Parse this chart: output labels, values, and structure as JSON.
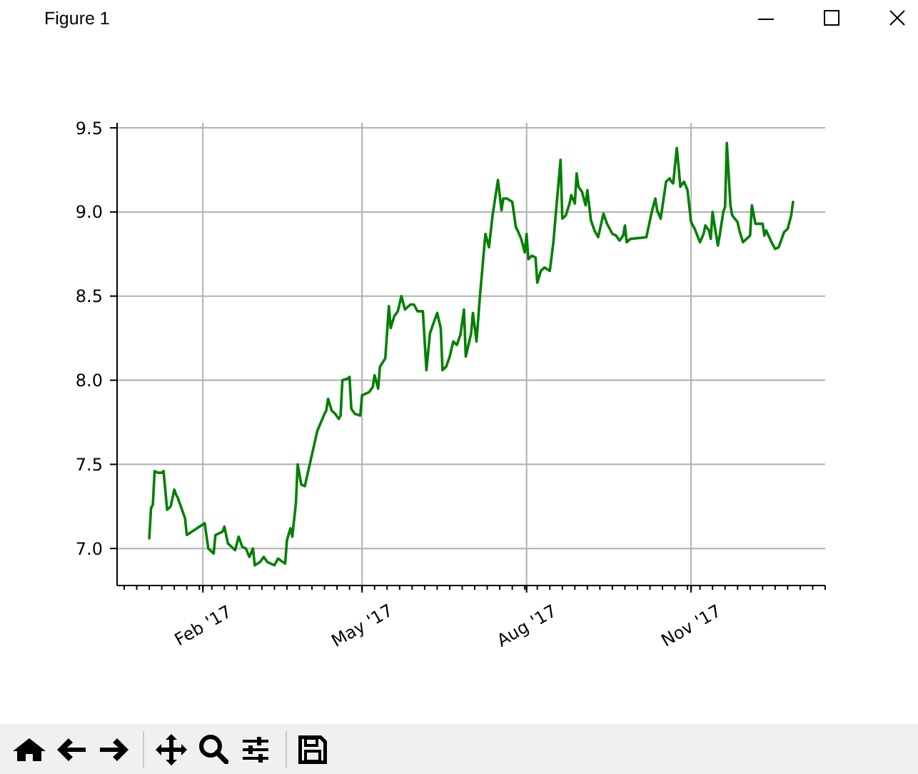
{
  "chart_data": {
    "type": "line",
    "annotations": [
      "Figure 1"
    ],
    "x": [
      "2017-01-02",
      "2017-01-03",
      "2017-01-04",
      "2017-01-05",
      "2017-01-07",
      "2017-01-09",
      "2017-01-10",
      "2017-01-12",
      "2017-01-14",
      "2017-01-16",
      "2017-01-17",
      "2017-01-18",
      "2017-01-20",
      "2017-01-22",
      "2017-01-23",
      "2017-02-02",
      "2017-02-04",
      "2017-02-07",
      "2017-02-08",
      "2017-02-12",
      "2017-02-13",
      "2017-02-15",
      "2017-02-17",
      "2017-02-19",
      "2017-02-21",
      "2017-02-22",
      "2017-02-23",
      "2017-02-25",
      "2017-02-27",
      "2017-03-01",
      "2017-03-02",
      "2017-03-05",
      "2017-03-07",
      "2017-03-09",
      "2017-03-13",
      "2017-03-15",
      "2017-03-19",
      "2017-03-20",
      "2017-03-22",
      "2017-03-23",
      "2017-03-25",
      "2017-03-26",
      "2017-03-28",
      "2017-03-30",
      "2017-04-06",
      "2017-04-10",
      "2017-04-11",
      "2017-04-12",
      "2017-04-14",
      "2017-04-16",
      "2017-04-18",
      "2017-04-19",
      "2017-04-20",
      "2017-04-23",
      "2017-04-24",
      "2017-04-25",
      "2017-04-27",
      "2017-04-30",
      "2017-05-01",
      "2017-05-05",
      "2017-05-07",
      "2017-05-08",
      "2017-05-10",
      "2017-05-11",
      "2017-05-14",
      "2017-05-16",
      "2017-05-17",
      "2017-05-19",
      "2017-05-21",
      "2017-05-23",
      "2017-05-25",
      "2017-05-28",
      "2017-05-30",
      "2017-06-01",
      "2017-06-04",
      "2017-06-06",
      "2017-06-08",
      "2017-06-10",
      "2017-06-12",
      "2017-06-14",
      "2017-06-15",
      "2017-06-17",
      "2017-06-19",
      "2017-06-21",
      "2017-06-23",
      "2017-06-25",
      "2017-06-27",
      "2017-06-28",
      "2017-07-01",
      "2017-07-02",
      "2017-07-04",
      "2017-07-06",
      "2017-07-09",
      "2017-07-11",
      "2017-07-13",
      "2017-07-16",
      "2017-07-18",
      "2017-07-19",
      "2017-07-21",
      "2017-07-24",
      "2017-07-26",
      "2017-07-27",
      "2017-07-29",
      "2017-07-31",
      "2017-08-01",
      "2017-08-02",
      "2017-08-04",
      "2017-08-06",
      "2017-08-07",
      "2017-08-09",
      "2017-08-11",
      "2017-08-14",
      "2017-08-16",
      "2017-08-18",
      "2017-08-20",
      "2017-08-21",
      "2017-08-23",
      "2017-08-25",
      "2017-08-26",
      "2017-08-28",
      "2017-08-29",
      "2017-08-30",
      "2017-09-01",
      "2017-09-03",
      "2017-09-04",
      "2017-09-06",
      "2017-09-08",
      "2017-09-10",
      "2017-09-13",
      "2017-09-15",
      "2017-09-18",
      "2017-09-20",
      "2017-09-22",
      "2017-09-24",
      "2017-09-25",
      "2017-09-26",
      "2017-09-28",
      "2017-10-07",
      "2017-10-10",
      "2017-10-12",
      "2017-10-13",
      "2017-10-15",
      "2017-10-18",
      "2017-10-20",
      "2017-10-21",
      "2017-10-22",
      "2017-10-24",
      "2017-10-25",
      "2017-10-26",
      "2017-10-28",
      "2017-10-30",
      "2017-11-01",
      "2017-11-03",
      "2017-11-06",
      "2017-11-08",
      "2017-11-09",
      "2017-11-11",
      "2017-11-12",
      "2017-11-13",
      "2017-11-14",
      "2017-11-16",
      "2017-11-17",
      "2017-11-19",
      "2017-11-20",
      "2017-11-21",
      "2017-11-23",
      "2017-11-24",
      "2017-11-27",
      "2017-11-28",
      "2017-11-30",
      "2017-12-02",
      "2017-12-04",
      "2017-12-05",
      "2017-12-07",
      "2017-12-09",
      "2017-12-11",
      "2017-12-12",
      "2017-12-13",
      "2017-12-16",
      "2017-12-18",
      "2017-12-20",
      "2017-12-23",
      "2017-12-25",
      "2017-12-27",
      "2017-12-28"
    ],
    "values": [
      7.06,
      7.24,
      7.26,
      7.46,
      7.45,
      7.45,
      7.46,
      7.23,
      7.25,
      7.35,
      7.32,
      7.3,
      7.24,
      7.18,
      7.08,
      7.15,
      7.0,
      6.97,
      7.08,
      7.1,
      7.13,
      7.03,
      7.01,
      6.99,
      7.07,
      7.04,
      7.01,
      7.0,
      6.95,
      7.0,
      6.9,
      6.92,
      6.95,
      6.92,
      6.9,
      6.94,
      6.91,
      7.05,
      7.12,
      7.07,
      7.27,
      7.5,
      7.38,
      7.37,
      7.7,
      7.8,
      7.82,
      7.89,
      7.82,
      7.8,
      7.77,
      7.79,
      8.0,
      8.01,
      8.02,
      7.83,
      7.8,
      7.79,
      7.91,
      7.93,
      7.96,
      8.03,
      7.95,
      8.08,
      8.13,
      8.44,
      8.31,
      8.38,
      8.41,
      8.5,
      8.42,
      8.45,
      8.45,
      8.41,
      8.41,
      8.06,
      8.28,
      8.34,
      8.4,
      8.31,
      8.06,
      8.08,
      8.14,
      8.23,
      8.21,
      8.27,
      8.42,
      8.14,
      8.28,
      8.4,
      8.23,
      8.51,
      8.87,
      8.79,
      8.98,
      9.19,
      9.01,
      9.08,
      9.08,
      9.06,
      8.91,
      8.89,
      8.84,
      8.76,
      8.87,
      8.72,
      8.74,
      8.73,
      8.58,
      8.65,
      8.67,
      8.65,
      8.82,
      9.07,
      9.31,
      8.96,
      8.98,
      9.05,
      9.1,
      9.05,
      9.23,
      9.15,
      9.12,
      9.04,
      9.13,
      8.95,
      8.89,
      8.85,
      8.99,
      8.93,
      8.87,
      8.86,
      8.83,
      8.86,
      8.92,
      8.82,
      8.84,
      8.85,
      9.0,
      9.08,
      9.01,
      8.96,
      9.18,
      9.2,
      9.18,
      9.17,
      9.38,
      9.27,
      9.15,
      9.18,
      9.13,
      8.94,
      8.9,
      8.82,
      8.87,
      8.92,
      8.89,
      8.84,
      9.0,
      8.93,
      8.8,
      8.86,
      9.0,
      9.03,
      9.41,
      9.04,
      8.98,
      8.94,
      8.89,
      8.82,
      8.84,
      8.86,
      9.04,
      8.93,
      8.93,
      8.93,
      8.86,
      8.89,
      8.82,
      8.78,
      8.79,
      8.88,
      8.9,
      8.98,
      9.06
    ],
    "color": "#008000",
    "xlim": [
      "2016-12-15",
      "2018-01-15"
    ],
    "xticks": [
      {
        "value": "2016-12-19",
        "label": null
      },
      {
        "value": "2016-12-26",
        "label": null
      },
      {
        "value": "2017-01-02",
        "label": null
      },
      {
        "value": "2017-01-09",
        "label": null
      },
      {
        "value": "2017-01-16",
        "label": null
      },
      {
        "value": "2017-01-23",
        "label": null
      },
      {
        "value": "2017-01-30",
        "label": null
      },
      {
        "value": "2017-02-01",
        "label": "Feb '17"
      },
      {
        "value": "2017-02-06",
        "label": null
      },
      {
        "value": "2017-02-13",
        "label": null
      },
      {
        "value": "2017-02-20",
        "label": null
      },
      {
        "value": "2017-02-27",
        "label": null
      },
      {
        "value": "2017-03-06",
        "label": null
      },
      {
        "value": "2017-03-13",
        "label": null
      },
      {
        "value": "2017-03-20",
        "label": null
      },
      {
        "value": "2017-03-27",
        "label": null
      },
      {
        "value": "2017-04-03",
        "label": null
      },
      {
        "value": "2017-04-10",
        "label": null
      },
      {
        "value": "2017-04-17",
        "label": null
      },
      {
        "value": "2017-04-24",
        "label": null
      },
      {
        "value": "2017-05-01",
        "label": "May '17"
      },
      {
        "value": "2017-05-08",
        "label": null
      },
      {
        "value": "2017-05-15",
        "label": null
      },
      {
        "value": "2017-05-22",
        "label": null
      },
      {
        "value": "2017-05-29",
        "label": null
      },
      {
        "value": "2017-06-05",
        "label": null
      },
      {
        "value": "2017-06-12",
        "label": null
      },
      {
        "value": "2017-06-19",
        "label": null
      },
      {
        "value": "2017-06-26",
        "label": null
      },
      {
        "value": "2017-07-03",
        "label": null
      },
      {
        "value": "2017-07-10",
        "label": null
      },
      {
        "value": "2017-07-17",
        "label": null
      },
      {
        "value": "2017-07-24",
        "label": null
      },
      {
        "value": "2017-07-31",
        "label": null
      },
      {
        "value": "2017-08-01",
        "label": "Aug '17"
      },
      {
        "value": "2017-08-07",
        "label": null
      },
      {
        "value": "2017-08-14",
        "label": null
      },
      {
        "value": "2017-08-21",
        "label": null
      },
      {
        "value": "2017-08-28",
        "label": null
      },
      {
        "value": "2017-09-04",
        "label": null
      },
      {
        "value": "2017-09-11",
        "label": null
      },
      {
        "value": "2017-09-18",
        "label": null
      },
      {
        "value": "2017-09-25",
        "label": null
      },
      {
        "value": "2017-10-02",
        "label": null
      },
      {
        "value": "2017-10-09",
        "label": null
      },
      {
        "value": "2017-10-16",
        "label": null
      },
      {
        "value": "2017-10-23",
        "label": null
      },
      {
        "value": "2017-10-30",
        "label": null
      },
      {
        "value": "2017-11-01",
        "label": "Nov '17"
      },
      {
        "value": "2017-11-06",
        "label": null
      },
      {
        "value": "2017-11-13",
        "label": null
      },
      {
        "value": "2017-11-20",
        "label": null
      },
      {
        "value": "2017-11-27",
        "label": null
      },
      {
        "value": "2017-12-04",
        "label": null
      },
      {
        "value": "2017-12-11",
        "label": null
      },
      {
        "value": "2017-12-18",
        "label": null
      },
      {
        "value": "2017-12-25",
        "label": null
      },
      {
        "value": "2018-01-01",
        "label": null
      },
      {
        "value": "2018-01-08",
        "label": null
      },
      {
        "value": "2018-01-15",
        "label": null
      }
    ],
    "ylim": [
      6.78,
      9.53
    ],
    "yticks": [
      {
        "value": 7,
        "label": "7.0"
      },
      {
        "value": 7.5,
        "label": "7.5"
      },
      {
        "value": 8,
        "label": "8.0"
      },
      {
        "value": 8.5,
        "label": "8.5"
      },
      {
        "value": 9,
        "label": "9.0"
      },
      {
        "value": 9.5,
        "label": "9.5"
      }
    ],
    "grid": true
  }
}
